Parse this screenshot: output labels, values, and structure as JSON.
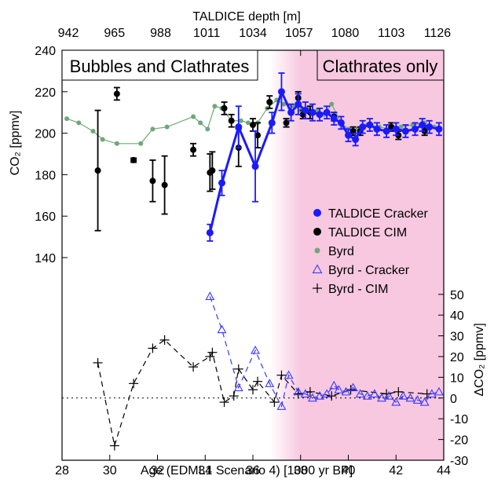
{
  "chart_data": {
    "type": "scatter",
    "top_axis": {
      "label": "TALDICE depth [m]",
      "ticks": [
        942,
        965,
        988,
        1011,
        1034,
        1057,
        1080,
        1103,
        1126
      ]
    },
    "x_axis": {
      "label": "Age (EDML1 Scenario 4) [1000 yr BP]",
      "range": [
        28,
        44
      ],
      "ticks": [
        28,
        30,
        32,
        34,
        36,
        38,
        40,
        42,
        44
      ]
    },
    "y_left": {
      "label": "CO₂ [ppmv]",
      "range": [
        140,
        240
      ],
      "ticks": [
        140,
        160,
        180,
        200,
        220,
        240
      ]
    },
    "y_right": {
      "label": "ΔCO₂ [ppmv]",
      "range": [
        -30,
        50
      ],
      "ticks": [
        -30,
        -20,
        -10,
        0,
        10,
        20,
        30,
        40,
        50
      ]
    },
    "regions": {
      "left_label": "Bubbles and Clathrates",
      "right_label": "Clathrates only",
      "shade_start_x": 36.7,
      "shade_color": "#f7c8df"
    },
    "legend": [
      {
        "label": "TALDICE Cracker",
        "color": "#1a1aff",
        "marker": "circle"
      },
      {
        "label": "TALDICE CIM",
        "color": "#000000",
        "marker": "circle"
      },
      {
        "label": "Byrd",
        "color": "#6fa878",
        "marker": "circle-small"
      },
      {
        "label": "Byrd - Cracker",
        "color": "#3a3aff",
        "marker": "triangle-open"
      },
      {
        "label": "Byrd - CIM",
        "color": "#000000",
        "marker": "plus"
      }
    ],
    "series": [
      {
        "name": "TALDICE Cracker",
        "axis": "left",
        "color": "#1a1aff",
        "x": [
          34.2,
          34.7,
          35.4,
          36.1,
          36.8,
          37.2,
          37.6,
          37.9,
          38.2,
          38.5,
          38.8,
          39.1,
          39.4,
          39.7,
          40.0,
          40.3,
          40.6,
          40.9,
          41.2,
          41.6,
          42.0,
          42.4,
          42.8,
          43.1,
          43.4,
          43.8
        ],
        "y": [
          152,
          176,
          203,
          184,
          205,
          220,
          210,
          214,
          211,
          210,
          209,
          210,
          207,
          205,
          199,
          197,
          203,
          204,
          202,
          201,
          202,
          201,
          202,
          204,
          203,
          202
        ],
        "err": [
          4,
          6,
          10,
          17,
          5,
          9,
          4,
          5,
          4,
          4,
          3,
          3,
          3,
          3,
          3,
          3,
          3,
          3,
          3,
          3,
          3,
          3,
          3,
          3,
          3,
          3
        ]
      },
      {
        "name": "TALDICE CIM",
        "axis": "left",
        "color": "#000000",
        "x": [
          29.5,
          30.3,
          31.0,
          31.8,
          32.3,
          33.5,
          34.2,
          34.3,
          34.8,
          35.1,
          35.4,
          36.0,
          36.2,
          36.7,
          37.4,
          37.9,
          38.1,
          38.4,
          39.4,
          40.2,
          40.5,
          41.8,
          42.1,
          43.2
        ],
        "y": [
          182,
          219,
          187,
          177,
          175,
          192,
          181,
          182,
          212,
          206,
          193,
          204,
          199,
          215,
          205,
          217,
          209,
          210,
          208,
          201,
          201,
          203,
          199,
          201
        ],
        "err": [
          29,
          3,
          1,
          10,
          14,
          3,
          9,
          9,
          3,
          3,
          9,
          3,
          6,
          3,
          2,
          3,
          2,
          3,
          2,
          2,
          2,
          2,
          2,
          2
        ]
      },
      {
        "name": "Byrd",
        "axis": "left",
        "color": "#6fa878",
        "x": [
          28.2,
          28.7,
          29.3,
          29.7,
          30.3,
          31.3,
          31.8,
          32.4,
          33.5,
          33.8,
          34.1,
          34.4,
          34.7,
          35.1,
          35.5,
          35.8,
          36.2,
          36.6,
          37.0,
          37.3,
          37.7,
          38.0,
          38.3,
          38.7,
          39.0,
          39.3,
          39.7,
          40.0,
          40.4,
          40.8,
          41.3,
          41.8,
          42.2,
          42.7,
          43.2,
          43.6
        ],
        "y": [
          207,
          205,
          201,
          197,
          195,
          195,
          202,
          203,
          208,
          205,
          202,
          213,
          212,
          206,
          206,
          205,
          205,
          212,
          216,
          214,
          213,
          211,
          212,
          211,
          209,
          214,
          205,
          202,
          202,
          204,
          203,
          202,
          203,
          204,
          205,
          203
        ]
      },
      {
        "name": "Byrd - Cracker",
        "axis": "right",
        "color": "#3a3aff",
        "x": [
          34.2,
          34.7,
          35.4,
          36.1,
          36.7,
          37.2,
          37.5,
          37.9,
          38.2,
          38.5,
          38.8,
          39.1,
          39.4,
          39.6,
          39.9,
          40.2,
          40.5,
          40.8,
          41.1,
          41.4,
          41.7,
          42.0,
          42.3,
          42.6,
          42.9,
          43.2,
          43.5,
          43.8
        ],
        "y": [
          49,
          33,
          5,
          23,
          7,
          -4,
          11,
          3,
          2,
          0,
          1,
          2,
          6,
          4,
          3,
          5,
          2,
          1,
          2,
          0,
          1,
          -2,
          1,
          0,
          -1,
          -2,
          2,
          3
        ]
      },
      {
        "name": "Byrd - CIM",
        "axis": "right",
        "color": "#000000",
        "x": [
          29.5,
          30.2,
          31.0,
          31.8,
          32.3,
          33.5,
          34.2,
          34.3,
          34.8,
          35.2,
          35.4,
          36.0,
          36.2,
          36.9,
          37.2,
          37.9,
          38.4,
          39.3,
          40.1,
          41.6,
          42.1,
          43.3
        ],
        "y": [
          17,
          -23,
          7,
          24,
          28,
          15,
          20,
          22,
          -2,
          1,
          14,
          4,
          8,
          -2,
          11,
          2,
          3,
          1,
          4,
          2,
          3,
          2
        ]
      }
    ],
    "zero_line": {
      "axis": "right",
      "y": 0
    }
  }
}
